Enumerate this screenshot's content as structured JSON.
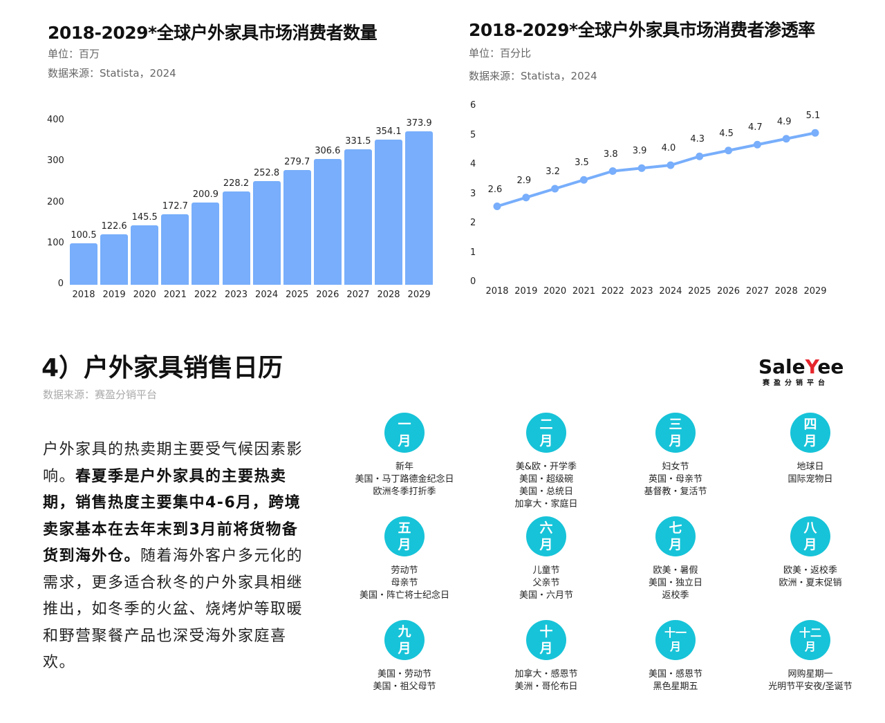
{
  "chart_data": [
    {
      "type": "bar",
      "title": "2018-2029*全球户外家具市场消费者数量",
      "unit": "单位：百万",
      "source": "数据来源：Statista，2024",
      "xlabel": "",
      "ylabel": "",
      "ylim": [
        0,
        400
      ],
      "yticks": [
        "0",
        "100",
        "200",
        "300",
        "400"
      ],
      "grid": false,
      "legend": null,
      "color": "#78aefb",
      "categories": [
        "2018",
        "2019",
        "2020",
        "2021",
        "2022",
        "2023",
        "2024",
        "2025",
        "2026",
        "2027",
        "2028",
        "2029"
      ],
      "values": [
        100.5,
        122.6,
        145.5,
        172.7,
        200.9,
        228.2,
        252.8,
        279.7,
        306.6,
        331.5,
        354.1,
        373.9
      ],
      "labels": [
        "100.5",
        "122.6",
        "145.5",
        "172.7",
        "200.9",
        "228.2",
        "252.8",
        "279.7",
        "306.6",
        "331.5",
        "354.1",
        "373.9"
      ]
    },
    {
      "type": "line",
      "title": "2018-2029*全球户外家具市场消费者渗透率",
      "unit": "单位：百分比",
      "source": "数据来源：Statista，2024",
      "xlabel": "",
      "ylabel": "",
      "ylim": [
        0,
        6
      ],
      "yticks": [
        "0",
        "1",
        "2",
        "3",
        "4",
        "5",
        "6"
      ],
      "grid": false,
      "legend": null,
      "color": "#78aefb",
      "categories": [
        "2018",
        "2019",
        "2020",
        "2021",
        "2022",
        "2023",
        "2024",
        "2025",
        "2026",
        "2027",
        "2028",
        "2029"
      ],
      "values": [
        2.6,
        2.9,
        3.2,
        3.5,
        3.8,
        3.9,
        4.0,
        4.3,
        4.5,
        4.7,
        4.9,
        5.1
      ],
      "labels": [
        "2.6",
        "2.9",
        "3.2",
        "3.5",
        "3.8",
        "3.9",
        "4.0",
        "4.3",
        "4.5",
        "4.7",
        "4.9",
        "5.1"
      ]
    }
  ],
  "section": {
    "title": "4）户外家具销售日历",
    "source": "数据来源：赛盈分销平台",
    "paragraph": {
      "p1": "户外家具的热卖期主要受气候因素影响。",
      "bold": "春夏季是户外家具的主要热卖期，销售热度主要集中4-6月，跨境卖家基本在去年末到3月前将货物备货到海外仓。",
      "p2": "随着海外客户多元化的需求，更多适合秋冬的户外家具相继推出，如冬季的火盆、烧烤炉等取暖和野营聚餐产品也深受海外家庭喜欢。"
    }
  },
  "logo": {
    "text_a": "Sale",
    "text_y": "Y",
    "text_b": "ee",
    "subtitle": "赛盈分销平台"
  },
  "calendar": {
    "circle_color": "#17c3d8",
    "months": [
      {
        "num": "一",
        "suffix": "月",
        "events": [
          "新年",
          "美国・马丁路德金纪念日",
          "欧洲冬季打折季"
        ]
      },
      {
        "num": "二",
        "suffix": "月",
        "events": [
          "美&欧・开学季",
          "美国・超级碗",
          "美国・总统日",
          "加拿大・家庭日"
        ]
      },
      {
        "num": "三",
        "suffix": "月",
        "events": [
          "妇女节",
          "英国・母亲节",
          "基督教・复活节"
        ]
      },
      {
        "num": "四",
        "suffix": "月",
        "events": [
          "地球日",
          "国际宠物日"
        ]
      },
      {
        "num": "五",
        "suffix": "月",
        "events": [
          "劳动节",
          "母亲节",
          "美国・阵亡将士纪念日"
        ]
      },
      {
        "num": "六",
        "suffix": "月",
        "events": [
          "儿童节",
          "父亲节",
          "美国・六月节"
        ]
      },
      {
        "num": "七",
        "suffix": "月",
        "events": [
          "欧美・暑假",
          "美国・独立日",
          "返校季"
        ]
      },
      {
        "num": "八",
        "suffix": "月",
        "events": [
          "欧美・返校季",
          "欧洲・夏末促销"
        ]
      },
      {
        "num": "九",
        "suffix": "月",
        "events": [
          "美国・劳动节",
          "美国・祖父母节"
        ]
      },
      {
        "num": "十",
        "suffix": "月",
        "events": [
          "加拿大・感恩节",
          "美洲・哥伦布日"
        ]
      },
      {
        "num": "十一",
        "suffix": "月",
        "events": [
          "美国・感恩节",
          "黑色星期五"
        ]
      },
      {
        "num": "十二",
        "suffix": "月",
        "events": [
          "网购星期一",
          "光明节平安夜/圣诞节"
        ]
      }
    ]
  }
}
